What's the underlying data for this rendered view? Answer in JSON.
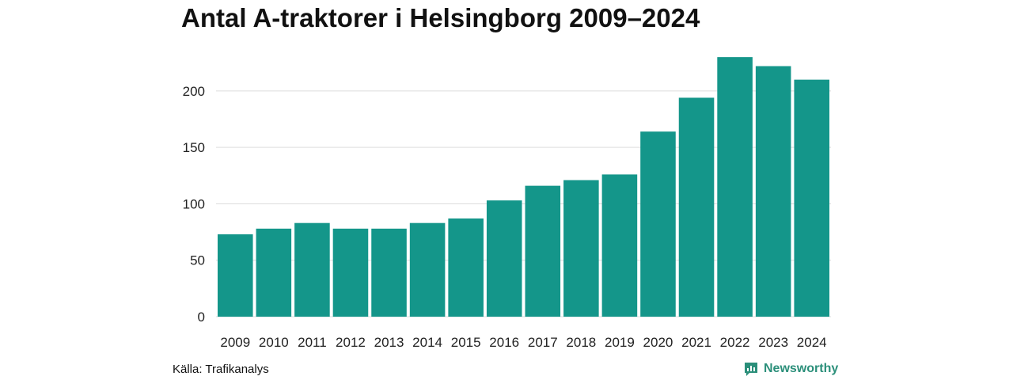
{
  "chart_data": {
    "type": "bar",
    "title": "Antal A-traktorer i Helsingborg 2009–2024",
    "xlabel": "",
    "ylabel": "",
    "categories": [
      "2009",
      "2010",
      "2011",
      "2012",
      "2013",
      "2014",
      "2015",
      "2016",
      "2017",
      "2018",
      "2019",
      "2020",
      "2021",
      "2022",
      "2023",
      "2024"
    ],
    "values": [
      73,
      78,
      83,
      78,
      78,
      83,
      87,
      103,
      116,
      121,
      126,
      164,
      194,
      230,
      222,
      210
    ],
    "ylim": [
      0,
      235
    ],
    "yticks": [
      0,
      50,
      100,
      150,
      200
    ],
    "grid": true,
    "legend": "none",
    "bar_color": "#14968a"
  },
  "footer": {
    "source": "Källa: Trafikanalys",
    "brand": "Newsworthy",
    "brand_color": "#2b8f7a",
    "brand_icon": "newsworthy-logo-icon"
  }
}
